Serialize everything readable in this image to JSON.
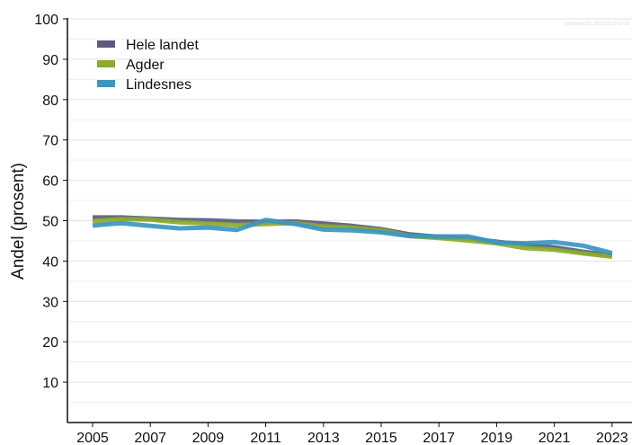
{
  "chart_data": {
    "type": "line",
    "title": "",
    "xlabel": "",
    "ylabel": "Andel (prosent)",
    "watermark": "ESPEN/KOS_2023-11-15-13-18",
    "xlim": [
      2004,
      2024
    ],
    "ylim": [
      0,
      100
    ],
    "x_ticks": [
      "2005",
      "2007",
      "2009",
      "2011",
      "2013",
      "2015",
      "2017",
      "2019",
      "2021",
      "2023"
    ],
    "y_ticks": [
      "10",
      "20",
      "30",
      "40",
      "50",
      "60",
      "70",
      "80",
      "90",
      "100"
    ],
    "grid": "horizontal",
    "legend_position": "top-left",
    "x": [
      2005,
      2006,
      2007,
      2008,
      2009,
      2010,
      2011,
      2012,
      2013,
      2014,
      2015,
      2016,
      2017,
      2018,
      2019,
      2020,
      2021,
      2022,
      2023
    ],
    "series": [
      {
        "name": "Hele landet",
        "color": "#5b5b7c",
        "values": [
          50.8,
          50.8,
          50.5,
          50.2,
          50.1,
          49.8,
          49.7,
          49.8,
          49.3,
          48.7,
          47.9,
          46.6,
          46.0,
          45.6,
          44.8,
          44.0,
          43.4,
          42.3,
          41.4
        ]
      },
      {
        "name": "Agder",
        "color": "#8aab2c",
        "values": [
          49.9,
          50.4,
          50.3,
          49.6,
          49.3,
          48.9,
          49.2,
          49.4,
          48.6,
          48.3,
          47.6,
          46.2,
          45.7,
          45.1,
          44.4,
          43.2,
          42.8,
          41.9,
          41.1
        ]
      },
      {
        "name": "Lindesnes",
        "color": "#3a96c2",
        "values": [
          48.8,
          49.4,
          48.7,
          48.1,
          48.3,
          47.7,
          50.2,
          49.2,
          47.8,
          47.6,
          47.1,
          46.2,
          46.1,
          46.1,
          44.6,
          44.4,
          44.7,
          43.8,
          42.0
        ]
      }
    ]
  }
}
